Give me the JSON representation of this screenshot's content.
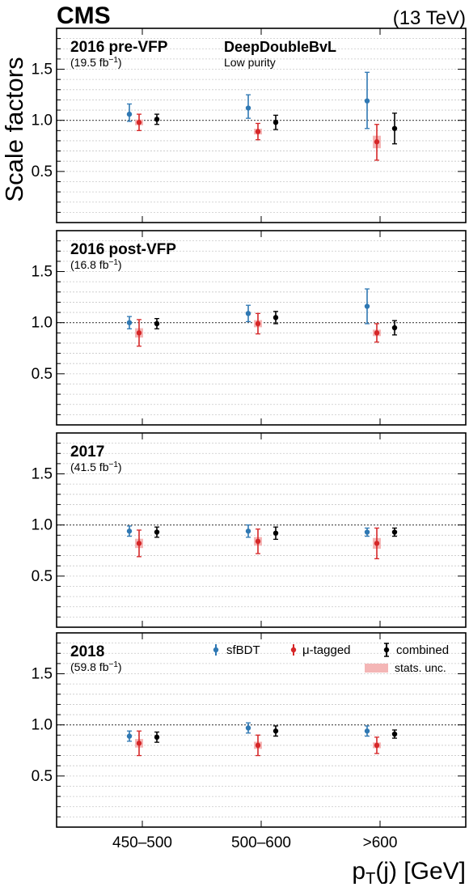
{
  "header": {
    "experiment": "CMS",
    "energy": "(13 TeV)",
    "tagger": "DeepDoubleBvL",
    "purity": "Low purity"
  },
  "axes": {
    "ylabel": "Scale factors",
    "xlabel_main": "p",
    "xlabel_sub": "T",
    "xlabel_rest": "(j) [GeV]"
  },
  "legend": {
    "sfbdt": "sfBDT",
    "mutagged": "μ-tagged",
    "combined": "combined",
    "stats": "stats. unc."
  },
  "colors": {
    "sfBDT": "#2f78b3",
    "mu_tagged": "#d62728",
    "combined": "#000000",
    "stats_band": "#f4b6b6"
  },
  "chart_data": {
    "type": "scatter",
    "categories": [
      "450–500",
      "500–600",
      ">600"
    ],
    "ylim": [
      0,
      1.9
    ],
    "yticks": [
      0.5,
      1.0,
      1.5
    ],
    "ytick_labels": [
      "0.5",
      "1.0",
      "1.5"
    ],
    "grid": true,
    "reference_line": 1.0,
    "panels": [
      {
        "title": "2016 pre-VFP",
        "lumi_pre": "(19.5 fb",
        "lumi_sup": "−1",
        "lumi_post": ")",
        "series": [
          {
            "name": "sfBDT",
            "values": [
              1.06,
              1.12,
              1.19
            ],
            "err_up": [
              0.1,
              0.13,
              0.28
            ],
            "err_down": [
              0.07,
              0.1,
              0.27
            ]
          },
          {
            "name": "μ-tagged",
            "values": [
              0.98,
              0.89,
              0.79
            ],
            "err_up": [
              0.08,
              0.08,
              0.17
            ],
            "err_down": [
              0.08,
              0.08,
              0.18
            ]
          },
          {
            "name": "combined",
            "values": [
              1.01,
              0.98,
              0.92
            ],
            "err_up": [
              0.05,
              0.07,
              0.15
            ],
            "err_down": [
              0.05,
              0.07,
              0.15
            ]
          }
        ]
      },
      {
        "title": "2016 post-VFP",
        "lumi_pre": "(16.8 fb",
        "lumi_sup": "−1",
        "lumi_post": ")",
        "series": [
          {
            "name": "sfBDT",
            "values": [
              1.0,
              1.09,
              1.16
            ],
            "err_up": [
              0.06,
              0.08,
              0.17
            ],
            "err_down": [
              0.06,
              0.08,
              0.17
            ]
          },
          {
            "name": "μ-tagged",
            "values": [
              0.9,
              0.99,
              0.9
            ],
            "err_up": [
              0.13,
              0.1,
              0.09
            ],
            "err_down": [
              0.13,
              0.1,
              0.09
            ]
          },
          {
            "name": "combined",
            "values": [
              0.99,
              1.05,
              0.95
            ],
            "err_up": [
              0.05,
              0.06,
              0.07
            ],
            "err_down": [
              0.05,
              0.06,
              0.07
            ]
          }
        ]
      },
      {
        "title": "2017",
        "lumi_pre": "(41.5 fb",
        "lumi_sup": "−1",
        "lumi_post": ")",
        "series": [
          {
            "name": "sfBDT",
            "values": [
              0.94,
              0.94,
              0.93
            ],
            "err_up": [
              0.05,
              0.06,
              0.04
            ],
            "err_down": [
              0.05,
              0.06,
              0.04
            ]
          },
          {
            "name": "μ-tagged",
            "values": [
              0.82,
              0.84,
              0.82
            ],
            "err_up": [
              0.13,
              0.12,
              0.15
            ],
            "err_down": [
              0.13,
              0.12,
              0.15
            ]
          },
          {
            "name": "combined",
            "values": [
              0.93,
              0.92,
              0.93
            ],
            "err_up": [
              0.05,
              0.06,
              0.04
            ],
            "err_down": [
              0.05,
              0.06,
              0.04
            ]
          }
        ]
      },
      {
        "title": "2018",
        "lumi_pre": "(59.8 fb",
        "lumi_sup": "−1",
        "lumi_post": ")",
        "series": [
          {
            "name": "sfBDT",
            "values": [
              0.89,
              0.97,
              0.94
            ],
            "err_up": [
              0.05,
              0.05,
              0.05
            ],
            "err_down": [
              0.05,
              0.05,
              0.05
            ]
          },
          {
            "name": "μ-tagged",
            "values": [
              0.82,
              0.8,
              0.8
            ],
            "err_up": [
              0.12,
              0.1,
              0.08
            ],
            "err_down": [
              0.12,
              0.1,
              0.08
            ]
          },
          {
            "name": "combined",
            "values": [
              0.88,
              0.94,
              0.91
            ],
            "err_up": [
              0.05,
              0.05,
              0.04
            ],
            "err_down": [
              0.05,
              0.05,
              0.04
            ]
          }
        ]
      }
    ]
  }
}
